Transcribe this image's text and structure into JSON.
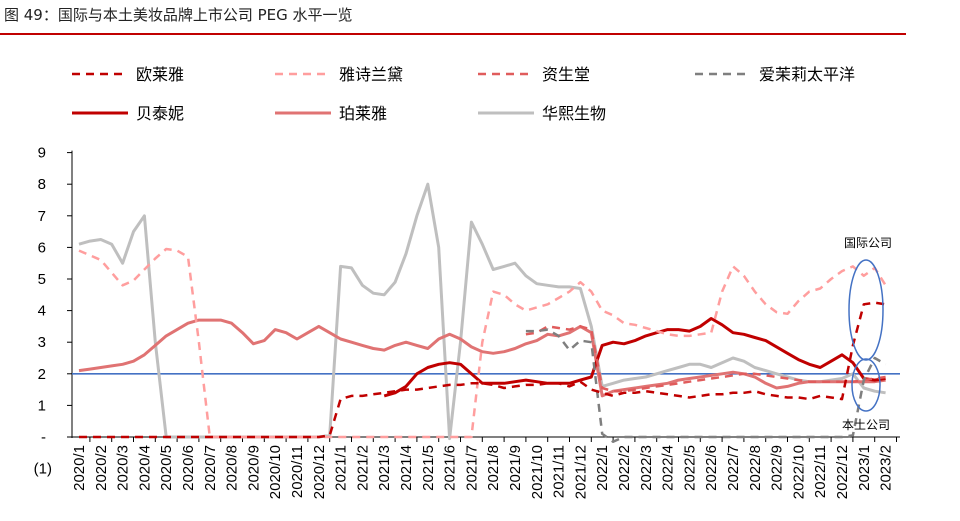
{
  "figure": {
    "title": "图 49：国际与本土美妆品牌上市公司 PEG 水平一览",
    "accent_color": "#c00000"
  },
  "chart_data": {
    "type": "line",
    "ylim": [
      -1,
      9
    ],
    "ytick_labels": [
      {
        "value": -1,
        "label": "(1)"
      },
      {
        "value": 0,
        "label": "-"
      },
      {
        "value": 1,
        "label": "1"
      },
      {
        "value": 2,
        "label": "2"
      },
      {
        "value": 3,
        "label": "3"
      },
      {
        "value": 4,
        "label": "4"
      },
      {
        "value": 5,
        "label": "5"
      },
      {
        "value": 6,
        "label": "6"
      },
      {
        "value": 7,
        "label": "7"
      },
      {
        "value": 8,
        "label": "8"
      },
      {
        "value": 9,
        "label": "9"
      }
    ],
    "categories": [
      "2020/1",
      "2020/2",
      "2020/3",
      "2020/4",
      "2020/5",
      "2020/6",
      "2020/7",
      "2020/8",
      "2020/9",
      "2020/10",
      "2020/11",
      "2020/12",
      "2021/1",
      "2021/2",
      "2021/3",
      "2021/4",
      "2021/5",
      "2021/6",
      "2021/7",
      "2021/8",
      "2021/9",
      "2021/10",
      "2021/11",
      "2021/12",
      "2022/1",
      "2022/2",
      "2022/3",
      "2022/4",
      "2022/5",
      "2022/6",
      "2022/7",
      "2022/8",
      "2022/9",
      "2022/10",
      "2022/11",
      "2022/12",
      "2023/1",
      "2023/2"
    ],
    "reference_line": {
      "value": 2,
      "color": "#4472c4"
    },
    "series": [
      {
        "name": "欧莱雅",
        "color": "#c00000",
        "dash": "8,6",
        "width": 2.5,
        "x": [
          0,
          0.5,
          1,
          1.5,
          2,
          2.5,
          3,
          3.5,
          4,
          4.5,
          5,
          5.5,
          6,
          6.5,
          7,
          7.5,
          8,
          8.5,
          9,
          9.5,
          10,
          10.5,
          11,
          11.5,
          12,
          12.5,
          13,
          13.5,
          14,
          14.5,
          15,
          15.5,
          16,
          16.5,
          17,
          17.5,
          18,
          18.5,
          19,
          19.5,
          20,
          20.5,
          21,
          21.5,
          22,
          22.5,
          23,
          23.5,
          24,
          24.5,
          25,
          25.5,
          26,
          26.5,
          27,
          27.5,
          28,
          28.5,
          29,
          29.5,
          30,
          30.5,
          31,
          31.5,
          32,
          32.5,
          33,
          33.5,
          34,
          34.5,
          35,
          35.5,
          36,
          36.5,
          37
        ],
        "y": [
          0,
          0,
          0,
          0,
          0,
          0,
          0,
          0,
          0,
          0,
          0,
          0,
          0,
          0,
          0,
          0,
          0,
          0,
          0,
          0,
          0,
          0,
          0,
          0.05,
          1.2,
          1.3,
          1.3,
          1.35,
          1.4,
          1.45,
          1.5,
          1.5,
          1.55,
          1.6,
          1.65,
          1.65,
          1.7,
          1.7,
          1.65,
          1.55,
          1.6,
          1.65,
          1.65,
          1.7,
          1.7,
          1.6,
          1.75,
          1.5,
          1.4,
          1.3,
          1.4,
          1.4,
          1.45,
          1.4,
          1.35,
          1.3,
          1.25,
          1.3,
          1.35,
          1.35,
          1.4,
          1.4,
          1.45,
          1.35,
          1.3,
          1.25,
          1.25,
          1.2,
          1.3,
          1.25,
          1.2,
          2.9,
          4.2,
          4.25,
          4.2
        ]
      },
      {
        "name": "雅诗兰黛",
        "color": "#ff9e9e",
        "dash": "8,6",
        "width": 2.5,
        "x": [
          0,
          0.5,
          1,
          1.5,
          2,
          2.5,
          3,
          3.5,
          4,
          4.5,
          5,
          5.5,
          6,
          6.5,
          7,
          7.5,
          8,
          8.5,
          9,
          9.5,
          10,
          10.5,
          11,
          11.5,
          12,
          12.5,
          13,
          13.5,
          14,
          14.5,
          15,
          15.5,
          16,
          16.5,
          17,
          17.5,
          18,
          18.5,
          19,
          19.5,
          20,
          20.5,
          21,
          21.5,
          22,
          22.5,
          23,
          23.5,
          24,
          24.5,
          25,
          25.5,
          26,
          26.5,
          27,
          27.5,
          28,
          28.5,
          29,
          29.5,
          30,
          30.5,
          31,
          31.5,
          32,
          32.5,
          33,
          33.5,
          34,
          34.5,
          35,
          35.5,
          36,
          36.5,
          37
        ],
        "y": [
          5.9,
          5.75,
          5.6,
          5.2,
          4.8,
          4.95,
          5.3,
          5.65,
          5.95,
          5.9,
          5.7,
          3.0,
          0,
          0,
          0,
          0,
          0,
          0,
          0,
          0,
          0,
          0,
          0,
          0,
          0,
          0,
          0,
          0,
          0,
          0,
          0,
          0,
          0,
          0,
          0,
          0,
          0,
          3.0,
          4.6,
          4.5,
          4.2,
          4.0,
          4.1,
          4.2,
          4.4,
          4.6,
          4.9,
          4.6,
          4.0,
          3.85,
          3.6,
          3.55,
          3.45,
          3.35,
          3.25,
          3.2,
          3.2,
          3.25,
          3.3,
          4.6,
          5.4,
          5.1,
          4.6,
          4.2,
          3.95,
          3.9,
          4.3,
          4.6,
          4.7,
          5.0,
          5.25,
          5.4,
          5.1,
          5.35,
          4.8
        ]
      },
      {
        "name": "资生堂",
        "color": "#e05c5c",
        "dash": "8,6",
        "width": 2.5,
        "x": [
          20.5,
          21,
          21.5,
          22,
          22.5,
          23,
          23.5,
          24,
          24.5,
          25,
          25.5,
          26,
          26.5,
          27,
          27.5,
          28,
          28.5,
          29,
          29.5,
          30,
          30.5,
          31,
          31.5,
          32,
          32.5,
          33,
          33.5,
          34,
          34.5,
          35,
          35.5,
          36,
          36.5,
          37
        ],
        "y": [
          3.25,
          3.3,
          3.5,
          3.45,
          3.4,
          3.5,
          3.4,
          1.55,
          1.45,
          1.45,
          1.5,
          1.55,
          1.6,
          1.65,
          1.7,
          1.75,
          1.8,
          1.85,
          1.9,
          1.95,
          2.0,
          2.0,
          1.95,
          1.9,
          1.85,
          1.8,
          1.75,
          1.75,
          1.75,
          1.75,
          1.75,
          1.8,
          1.85,
          1.9
        ]
      },
      {
        "name": "爱茉莉太平洋",
        "color": "#7f7f7f",
        "dash": "8,6",
        "width": 2.5,
        "x": [
          20.5,
          21,
          21.5,
          22,
          22.5,
          23,
          23.5,
          24,
          24.5,
          25,
          25.5,
          26,
          26.5,
          27,
          27.5,
          28,
          28.5,
          29,
          29.5,
          30,
          30.5,
          31,
          31.5,
          32,
          32.5,
          33,
          33.5,
          34,
          34.5,
          35,
          35.5,
          36,
          36.5,
          37
        ],
        "y": [
          3.35,
          3.35,
          3.4,
          3.2,
          2.75,
          3.05,
          3.0,
          0.1,
          -0.15,
          0,
          0,
          0,
          0,
          0,
          0,
          0,
          0,
          0,
          0,
          0,
          0,
          0,
          0,
          0,
          0,
          0,
          0,
          0,
          0,
          0,
          0.05,
          1.8,
          2.5,
          2.3
        ]
      },
      {
        "name": "贝泰妮",
        "color": "#c00000",
        "dash": "",
        "width": 3,
        "x": [
          14,
          14.5,
          15,
          15.5,
          16,
          16.5,
          17,
          17.5,
          18,
          18.5,
          19,
          19.5,
          20,
          20.5,
          21,
          21.5,
          22,
          22.5,
          23,
          23.5,
          24,
          24.5,
          25,
          25.5,
          26,
          26.5,
          27,
          27.5,
          28,
          28.5,
          29,
          29.5,
          30,
          30.5,
          31,
          31.5,
          32,
          32.5,
          33,
          33.5,
          34,
          34.5,
          35,
          35.5,
          36,
          36.5,
          37
        ],
        "y": [
          1.3,
          1.4,
          1.6,
          2.0,
          2.2,
          2.3,
          2.35,
          2.3,
          2.0,
          1.7,
          1.7,
          1.7,
          1.75,
          1.8,
          1.75,
          1.7,
          1.7,
          1.7,
          1.8,
          1.9,
          2.9,
          3.0,
          2.95,
          3.05,
          3.2,
          3.3,
          3.4,
          3.4,
          3.35,
          3.5,
          3.75,
          3.55,
          3.3,
          3.25,
          3.15,
          3.05,
          2.85,
          2.65,
          2.45,
          2.3,
          2.2,
          2.4,
          2.6,
          2.35,
          1.85,
          1.8,
          1.85
        ]
      },
      {
        "name": "珀莱雅",
        "color": "#e07373",
        "dash": "",
        "width": 3,
        "x": [
          0,
          0.5,
          1,
          1.5,
          2,
          2.5,
          3,
          3.5,
          4,
          4.5,
          5,
          5.5,
          6,
          6.5,
          7,
          7.5,
          8,
          8.5,
          9,
          9.5,
          10,
          10.5,
          11,
          11.5,
          12,
          12.5,
          13,
          13.5,
          14,
          14.5,
          15,
          15.5,
          16,
          16.5,
          17,
          17.5,
          18,
          18.5,
          19,
          19.5,
          20,
          20.5,
          21,
          21.5,
          22,
          22.5,
          23,
          23.5,
          24,
          24.5,
          25,
          25.5,
          26,
          26.5,
          27,
          27.5,
          28,
          28.5,
          29,
          29.5,
          30,
          30.5,
          31,
          31.5,
          32,
          32.5,
          33,
          33.5,
          34,
          34.5,
          35,
          35.5,
          36,
          36.5,
          37
        ],
        "y": [
          2.1,
          2.15,
          2.2,
          2.25,
          2.3,
          2.4,
          2.6,
          2.9,
          3.2,
          3.4,
          3.6,
          3.7,
          3.7,
          3.7,
          3.6,
          3.3,
          2.95,
          3.05,
          3.4,
          3.3,
          3.1,
          3.3,
          3.5,
          3.3,
          3.1,
          3.0,
          2.9,
          2.8,
          2.75,
          2.9,
          3.0,
          2.9,
          2.8,
          3.1,
          3.25,
          3.1,
          2.85,
          2.7,
          2.65,
          2.7,
          2.8,
          2.95,
          3.05,
          3.25,
          3.2,
          3.3,
          3.5,
          3.3,
          1.3,
          1.45,
          1.5,
          1.55,
          1.6,
          1.65,
          1.7,
          1.8,
          1.85,
          1.9,
          1.95,
          2.0,
          2.05,
          2.0,
          1.9,
          1.7,
          1.55,
          1.6,
          1.7,
          1.75,
          1.75,
          1.75,
          1.75,
          1.75,
          1.75,
          1.75,
          1.8
        ]
      },
      {
        "name": "华熙生物",
        "color": "#bfbfbf",
        "dash": "",
        "width": 3,
        "x": [
          0,
          0.5,
          1,
          1.5,
          2,
          2.5,
          3,
          3.5,
          4,
          4.5,
          5,
          5.5,
          6,
          6.5,
          7,
          7.5,
          8,
          8.5,
          9,
          9.5,
          10,
          10.5,
          11,
          11.5,
          12,
          12.5,
          13,
          13.5,
          14,
          14.5,
          15,
          15.5,
          16,
          16.5,
          17,
          17.5,
          18,
          18.5,
          19,
          19.5,
          20,
          20.5,
          21,
          21.5,
          22,
          22.5,
          23,
          23.5,
          24,
          24.5,
          25,
          25.5,
          26,
          26.5,
          27,
          27.5,
          28,
          28.5,
          29,
          29.5,
          30,
          30.5,
          31,
          31.5,
          32,
          32.5,
          33,
          33.5,
          34,
          34.5,
          35,
          35.5,
          36,
          36.5,
          37
        ],
        "y": [
          6.1,
          6.2,
          6.25,
          6.1,
          5.5,
          6.5,
          7.0,
          3.0,
          0,
          0,
          0,
          0,
          0,
          0,
          0,
          0,
          0,
          0,
          0,
          0,
          0,
          0,
          0,
          0.05,
          5.4,
          5.35,
          4.8,
          4.55,
          4.5,
          4.9,
          5.8,
          7.0,
          8.0,
          6.0,
          -0.05,
          3.0,
          6.8,
          6.1,
          5.3,
          5.4,
          5.5,
          5.1,
          4.85,
          4.8,
          4.75,
          4.75,
          4.7,
          3.5,
          1.6,
          1.7,
          1.8,
          1.85,
          1.9,
          2.0,
          2.1,
          2.2,
          2.3,
          2.3,
          2.2,
          2.35,
          2.5,
          2.4,
          2.2,
          2.1,
          2.0,
          1.9,
          1.8,
          1.75,
          1.75,
          1.8,
          1.85,
          2.0,
          1.55,
          1.45,
          1.4
        ]
      }
    ],
    "annotations": [
      {
        "text": "国际公司"
      },
      {
        "text": "本土公司"
      }
    ]
  }
}
